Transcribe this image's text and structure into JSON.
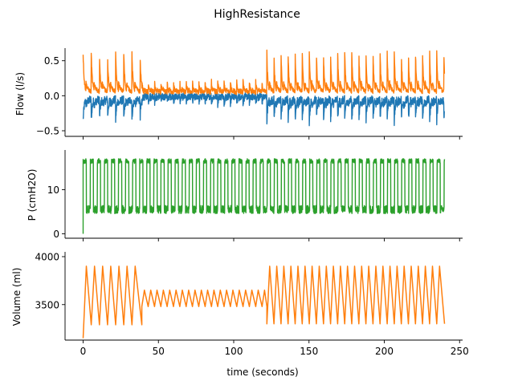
{
  "figure": {
    "title": "HighResistance",
    "xlabel": "time (seconds)"
  },
  "chart_data": [
    {
      "type": "line",
      "ylabel": "Flow (l/s)",
      "xlim": [
        -12,
        252
      ],
      "ylim": [
        -0.58,
        0.68
      ],
      "yticks": [
        -0.5,
        0.0,
        0.5
      ],
      "ytick_labels": [
        "−0.5",
        "0.0",
        "0.5"
      ],
      "xticks": [
        0,
        50,
        100,
        150,
        200,
        250
      ],
      "show_xtick_labels": false,
      "series": [
        {
          "color": "#1f77b4",
          "segments": [
            {
              "t0": 0,
              "t1": 39,
              "period": 5.4,
              "amp": 0.3,
              "base": -0.05,
              "noise": 0.12,
              "sign": -1
            },
            {
              "t0": 39,
              "t1": 122,
              "period": 4.2,
              "amp": 0.12,
              "base": 0.0,
              "noise": 0.1,
              "sign": -1
            },
            {
              "t0": 122,
              "t1": 240,
              "period": 4.7,
              "amp": 0.32,
              "base": -0.05,
              "noise": 0.12,
              "sign": -1
            }
          ]
        },
        {
          "color": "#ff7f0e",
          "segments": [
            {
              "t0": 0,
              "t1": 39,
              "period": 5.4,
              "amp": 0.55,
              "base": 0.05,
              "noise": 0.06,
              "sign": 1
            },
            {
              "t0": 39,
              "t1": 122,
              "period": 4.2,
              "amp": 0.16,
              "base": 0.05,
              "noise": 0.07,
              "sign": 1
            },
            {
              "t0": 122,
              "t1": 240,
              "period": 4.7,
              "amp": 0.58,
              "base": 0.05,
              "noise": 0.06,
              "sign": 1
            }
          ]
        }
      ]
    },
    {
      "type": "line",
      "ylabel": "P (cmH2O)",
      "xlim": [
        -12,
        252
      ],
      "ylim": [
        -1,
        19
      ],
      "yticks": [
        0,
        10
      ],
      "ytick_labels": [
        "0",
        "10"
      ],
      "xticks": [
        0,
        50,
        100,
        150,
        200,
        250
      ],
      "show_xtick_labels": false,
      "series": [
        {
          "color": "#2ca02c",
          "segments": [
            {
              "t0": 0,
              "t1": 240,
              "period": 4.7,
              "high": 16.5,
              "low": 5.5,
              "duty": 0.45,
              "noise": 1.3
            }
          ]
        }
      ]
    },
    {
      "type": "line",
      "ylabel": "Volume (ml)",
      "xlim": [
        -12,
        252
      ],
      "ylim": [
        3130,
        4050
      ],
      "yticks": [
        3500,
        4000
      ],
      "ytick_labels": [
        "3500",
        "4000"
      ],
      "xticks": [
        0,
        50,
        100,
        150,
        200,
        250
      ],
      "xtick_labels": [
        "0",
        "50",
        "100",
        "150",
        "200",
        "250"
      ],
      "show_xtick_labels": true,
      "series": [
        {
          "color": "#ff7f0e",
          "segments": [
            {
              "t0": 0,
              "t1": 39,
              "period": 5.4,
              "peak": 3900,
              "trough": 3290
            },
            {
              "t0": 39,
              "t1": 122,
              "period": 4.2,
              "peak": 3650,
              "trough": 3480
            },
            {
              "t0": 122,
              "t1": 240,
              "period": 4.7,
              "peak": 3900,
              "trough": 3300
            }
          ]
        }
      ]
    }
  ]
}
